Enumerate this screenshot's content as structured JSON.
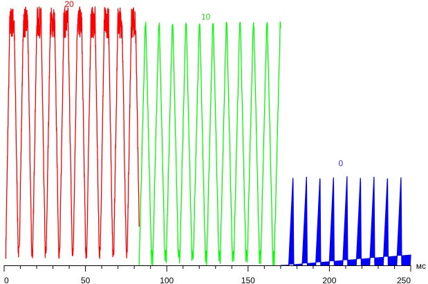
{
  "chart_data": {
    "type": "line",
    "xlim": [
      0,
      250
    ],
    "ylim": [
      0,
      1
    ],
    "xticks": [
      0,
      50,
      100,
      150,
      200,
      250
    ],
    "xtick_labels": [
      "0",
      "50",
      "100",
      "150",
      "200",
      "250"
    ],
    "minor_tick_step": 10,
    "x_unit": "мс",
    "grid": false,
    "legend": "none",
    "series": [
      {
        "name": "20",
        "color": "#ff0000",
        "x_range": [
          1,
          83
        ],
        "period": 8.3,
        "low": 0.05,
        "high": 0.93,
        "style": "noisy-plateau",
        "label_x": 40,
        "label_y": 0.99
      },
      {
        "name": "10",
        "color": "#00ff00",
        "x_range": [
          83,
          170
        ],
        "period": 8.3,
        "low": 0.0,
        "high": 0.92,
        "style": "peak-deep-trough",
        "label_x": 124,
        "label_y": 0.94
      },
      {
        "name": "0",
        "color": "#0000ff",
        "x_range": [
          170,
          250
        ],
        "period": 8.3,
        "low": 0.0,
        "high": 0.34,
        "style": "spike",
        "label_x": 207,
        "label_y": 0.38
      }
    ]
  }
}
